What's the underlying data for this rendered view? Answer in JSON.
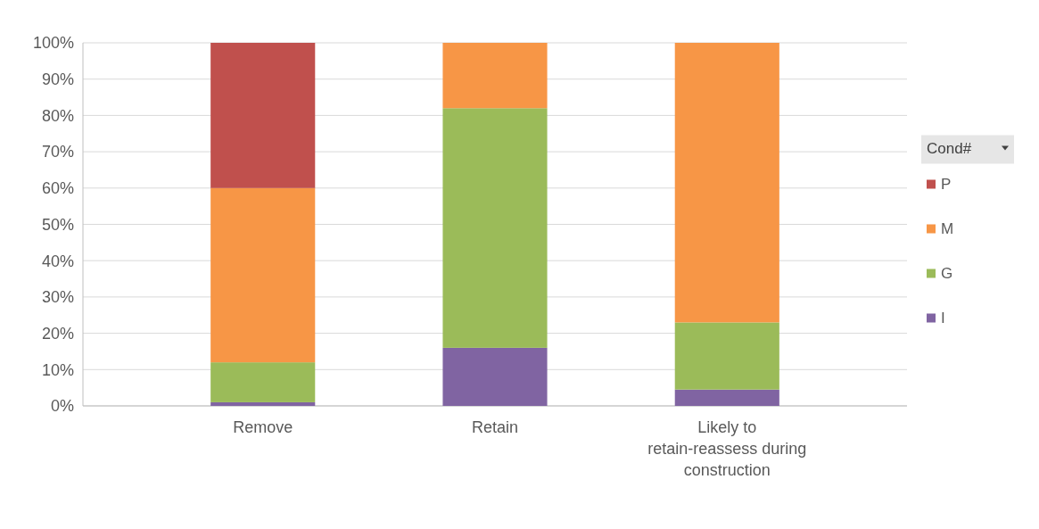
{
  "chart_data": {
    "type": "bar",
    "stacked": true,
    "categories": [
      "Remove",
      "Retain",
      "Likely to retain-reassess during construction"
    ],
    "series": [
      {
        "name": "I",
        "color": "#8064a2",
        "values": [
          1,
          16,
          4.5
        ]
      },
      {
        "name": "G",
        "color": "#9bbb59",
        "values": [
          11,
          66,
          18.5
        ]
      },
      {
        "name": "M",
        "color": "#f79646",
        "values": [
          48,
          18,
          77
        ]
      },
      {
        "name": "P",
        "color": "#c0504d",
        "values": [
          40,
          null,
          null
        ]
      }
    ],
    "ylim": [
      0,
      100
    ],
    "yticks": [
      {
        "value": 0,
        "label": "0%"
      },
      {
        "value": 10,
        "label": "10%"
      },
      {
        "value": 20,
        "label": "20%"
      },
      {
        "value": 30,
        "label": "30%"
      },
      {
        "value": 40,
        "label": "40%"
      },
      {
        "value": 50,
        "label": "50%"
      },
      {
        "value": 60,
        "label": "60%"
      },
      {
        "value": 70,
        "label": "70%"
      },
      {
        "value": 80,
        "label": "80%"
      },
      {
        "value": 90,
        "label": "90%"
      },
      {
        "value": 100,
        "label": "100%"
      }
    ],
    "grid": "y",
    "legend": "right",
    "legend_title": "Cond#"
  }
}
